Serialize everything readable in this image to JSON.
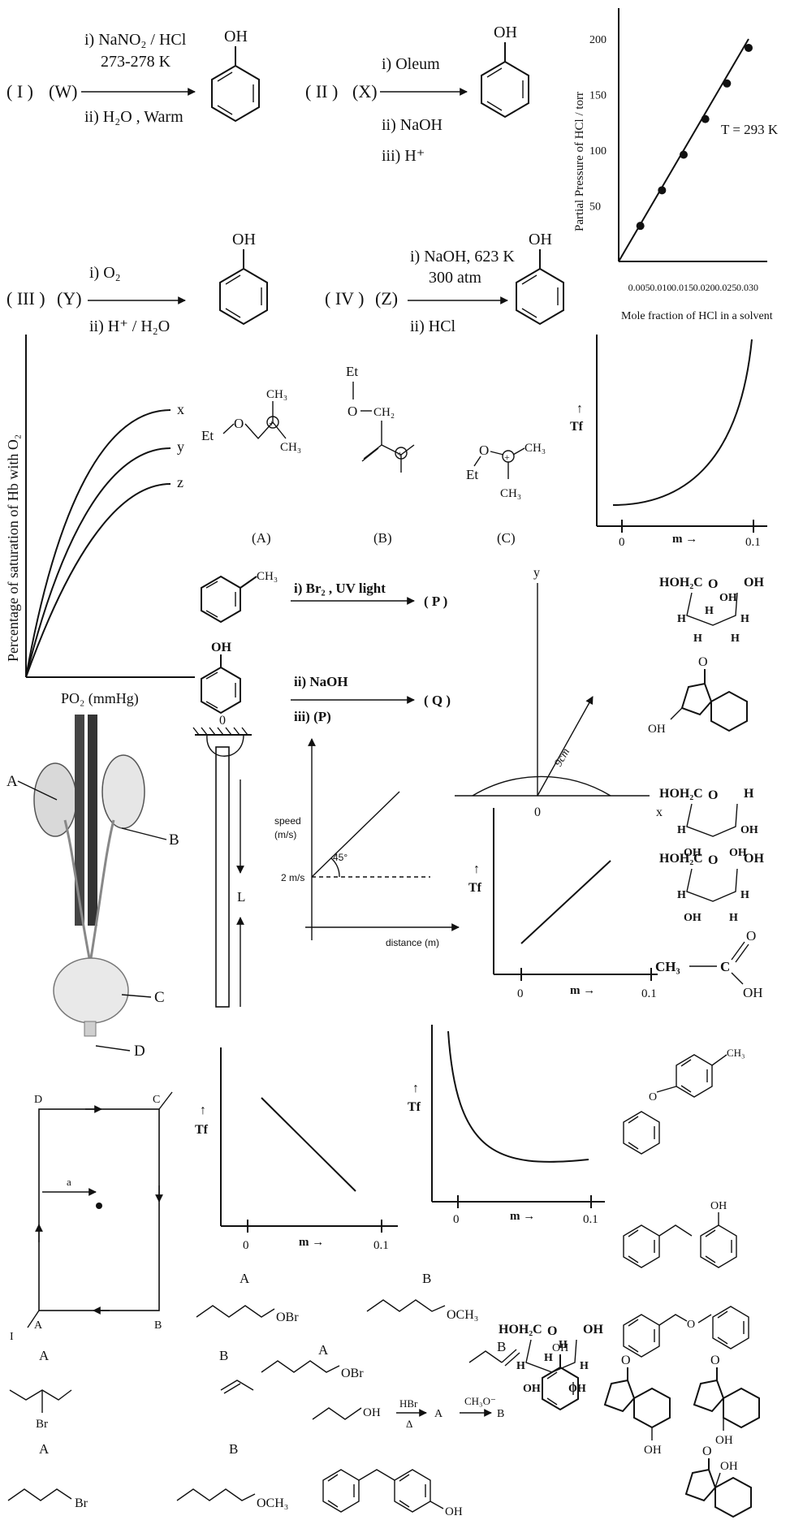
{
  "scheme": {
    "r1_label": "( I )",
    "r1_reactant": "(W)",
    "r1_reag1": "i)  NaNO₂ / HCl",
    "r1_reag2": "273-278 K",
    "r1_reag3": "ii) H₂O , Warm",
    "r2_label": "( II )",
    "r2_reactant": "(X)",
    "r2_reag1": "i)  Oleum",
    "r2_reag2": "ii) NaOH",
    "r2_reag3": "iii) H⁺",
    "r3_label": "( III )",
    "r3_reactant": "(Y)",
    "r3_reag1": "i)  O₂",
    "r3_reag2": "ii) H⁺ / H₂O",
    "r4_label": "( IV )",
    "r4_reactant": "(Z)",
    "r4_reag1": "i)  NaOH, 623 K",
    "r4_reag2": "300 atm",
    "r4_reag3": "ii) HCl",
    "oh": "OH"
  },
  "henry": {
    "ylabel": "Partial Pressure of HCl / torr",
    "xlabel": "Mole fraction of HCl in a solvent",
    "temp": "T = 293 K"
  },
  "hb": {
    "ylabel": "Percentage of saturation of Hb with O₂",
    "xlabel": "PO₂ (mmHg)",
    "curve_x": "x",
    "curve_y": "y",
    "curve_z": "z"
  },
  "carbocations": {
    "et": "Et",
    "o": "O",
    "ch3": "CH₃",
    "ch2": "CH₂",
    "a": "(A)",
    "b": "(B)",
    "c": "(C)"
  },
  "tf_plots": {
    "tf": "Tf",
    "m": "m →",
    "zero": "0",
    "end": "0.1",
    "arrow": "↑"
  },
  "benzyl": {
    "reag1": "i)  Br₂ , UV light",
    "prod1": "( P )",
    "reag2": "ii)  NaOH",
    "reag3": "iii) (P)",
    "prod2": "( Q )",
    "ch3": "CH₃",
    "oh": "OH"
  },
  "semicircle": {
    "y": "y",
    "x": "x",
    "o": "0",
    "radius": "9cm"
  },
  "speed": {
    "ylabel1": "speed",
    "ylabel2": "(m/s)",
    "y0": "2 m/s",
    "angle": "45°",
    "xlabel": "distance (m)"
  },
  "pendulum": {
    "o": "0",
    "l": "L"
  },
  "kidney": {
    "a": "A",
    "b": "B",
    "c": "C",
    "d": "D"
  },
  "loop": {
    "a": "A",
    "b": "B",
    "c": "C",
    "d": "D",
    "sep": "a",
    "current": "I"
  },
  "sugars": {
    "hoh2c": "HOH₂C",
    "oh": "OH",
    "h": "H",
    "o": "O",
    "acid_ch3": "CH₃",
    "acid_c": "C",
    "acid_oh": "OH",
    "acid_o": "O"
  },
  "bottom": {
    "a1": "A",
    "b1": "B",
    "a2": "A",
    "b2": "B",
    "a3": "A",
    "b3": "B",
    "a4": "A",
    "b4": "B",
    "obr": "OBr",
    "och3": "OCH₃",
    "br": "Br",
    "oh": "OH",
    "hbr": "HBr",
    "delta": "Δ",
    "ch3o": "CH₃O⁻",
    "ra": "A",
    "rb": "B",
    "ch3": "CH₃"
  }
}
